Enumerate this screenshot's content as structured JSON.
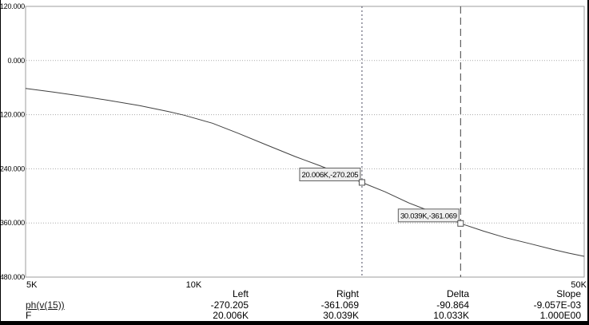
{
  "colors": {
    "background": "#ffffff",
    "frame": "#9c9c9c",
    "grid": "#aaaaaa",
    "curve": "#404040",
    "cursor_left_line": "#4a4a5e",
    "cursor_right_line": "#404040",
    "tag_fill": "#efefef",
    "tag_border": "#606060",
    "marker_stroke": "#505050",
    "text": "#000000",
    "outer_border": "#000000"
  },
  "chart_data": {
    "type": "line",
    "title": "",
    "xlabel": "F",
    "ylabel": "ph(v(15))",
    "x_scale": "log",
    "xlim": [
      5000,
      50000
    ],
    "ylim": [
      -480,
      120
    ],
    "grid": "horizontal-dotted",
    "x_ticks": [
      {
        "v": 5000,
        "label": "5K"
      },
      {
        "v": 10000,
        "label": "10K"
      },
      {
        "v": 50000,
        "label": "50K"
      }
    ],
    "y_ticks": [
      {
        "v": 120,
        "label": "120.000"
      },
      {
        "v": 0,
        "label": "0.000"
      },
      {
        "v": -120,
        "label": "-120.000"
      },
      {
        "v": -240,
        "label": "-240.000"
      },
      {
        "v": -360,
        "label": "-360.000"
      },
      {
        "v": -480,
        "label": "-480.000"
      }
    ],
    "grid_y": [
      0,
      -120,
      -240,
      -360
    ],
    "series": [
      {
        "name": "ph(v(15))",
        "points": [
          [
            5000,
            -62
          ],
          [
            5600,
            -70
          ],
          [
            6300,
            -79
          ],
          [
            7100,
            -89
          ],
          [
            8000,
            -100
          ],
          [
            9000,
            -113
          ],
          [
            9600,
            -121
          ],
          [
            10800,
            -139
          ],
          [
            12000,
            -161
          ],
          [
            13500,
            -187
          ],
          [
            15200,
            -213
          ],
          [
            16800,
            -233
          ],
          [
            18300,
            -251
          ],
          [
            20006,
            -270.2
          ],
          [
            22000,
            -291
          ],
          [
            24300,
            -316
          ],
          [
            26500,
            -334
          ],
          [
            28200,
            -348
          ],
          [
            30039,
            -361.1
          ],
          [
            33000,
            -378
          ],
          [
            36000,
            -392
          ],
          [
            40000,
            -406
          ],
          [
            44000,
            -419
          ],
          [
            47000,
            -427
          ],
          [
            50000,
            -434
          ]
        ]
      }
    ],
    "cursors": [
      {
        "name": "left",
        "freq": 20006,
        "value": -270.205,
        "tag": "20.006K,-270.205",
        "line_style": "dotted"
      },
      {
        "name": "right",
        "freq": 30039,
        "value": -361.069,
        "tag": "30.039K,-361.069",
        "line_style": "dashed"
      }
    ]
  },
  "readout": {
    "columns": [
      "Left",
      "Right",
      "Delta",
      "Slope"
    ],
    "rows": [
      {
        "label": "ph(v(15))",
        "values": [
          "-270.205",
          "-361.069",
          "-90.864",
          "-9.057E-03"
        ]
      },
      {
        "label": "F",
        "values": [
          "20.006K",
          "30.039K",
          "10.033K",
          "1.000E00"
        ]
      }
    ]
  }
}
